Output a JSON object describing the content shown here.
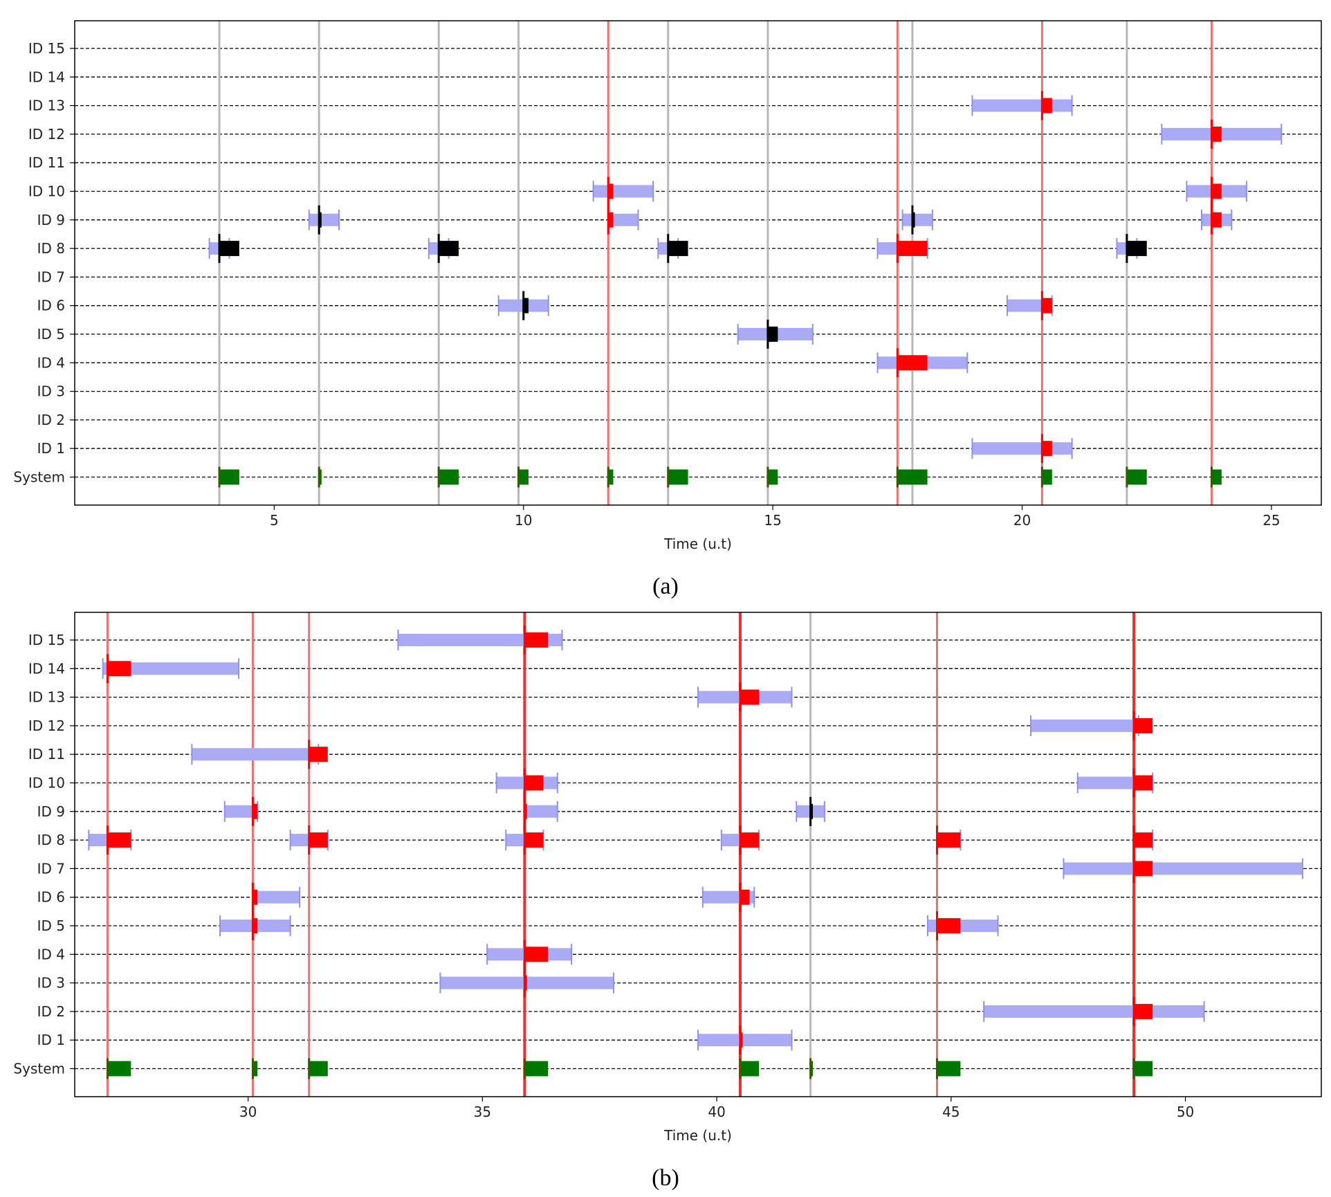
{
  "chart_data": [
    {
      "type": "gantt",
      "panel_label": "(a)",
      "xlabel": "Time (u.t)",
      "xlim": [
        1,
        26
      ],
      "x_ticks": [
        5,
        10,
        15,
        20,
        25
      ],
      "y_ticks": [
        "ID 15",
        "ID 14",
        "ID 13",
        "ID 12",
        "ID 11",
        "ID 10",
        "ID 9",
        "ID 8",
        "ID 7",
        "ID 6",
        "ID 5",
        "ID 4",
        "ID 3",
        "ID 2",
        "ID 1",
        "System"
      ],
      "colors": {
        "window": "#aaaaf5",
        "miss": "#ff0000",
        "ok": "#000000",
        "system": "#007700",
        "grey_line": "#b8b8b8",
        "red_line": "#f07070"
      },
      "vertical_lines": [
        {
          "x": 3.9,
          "kind": "grey"
        },
        {
          "x": 5.9,
          "kind": "grey"
        },
        {
          "x": 8.3,
          "kind": "grey"
        },
        {
          "x": 9.9,
          "kind": "grey"
        },
        {
          "x": 11.7,
          "kind": "red"
        },
        {
          "x": 12.9,
          "kind": "grey"
        },
        {
          "x": 14.9,
          "kind": "grey"
        },
        {
          "x": 17.5,
          "kind": "red"
        },
        {
          "x": 17.8,
          "kind": "grey"
        },
        {
          "x": 20.4,
          "kind": "red"
        },
        {
          "x": 22.1,
          "kind": "grey"
        },
        {
          "x": 23.8,
          "kind": "red"
        }
      ],
      "tasks": [
        {
          "row": "ID 8",
          "win": [
            3.7,
            4.1
          ],
          "exec": [
            3.9,
            4.3
          ],
          "color": "black"
        },
        {
          "row": "ID 9",
          "win": [
            5.7,
            6.3
          ],
          "exec": [
            5.9,
            5.95
          ],
          "color": "black"
        },
        {
          "row": "ID 8",
          "win": [
            8.1,
            8.5
          ],
          "exec": [
            8.3,
            8.7
          ],
          "color": "black"
        },
        {
          "row": "ID 6",
          "win": [
            9.5,
            10.5
          ],
          "exec": [
            10.0,
            10.1
          ],
          "color": "black"
        },
        {
          "row": "ID 10",
          "win": [
            11.4,
            12.6
          ],
          "exec": [
            11.7,
            11.8
          ],
          "color": "red"
        },
        {
          "row": "ID 9",
          "win": [
            11.7,
            12.3
          ],
          "exec": [
            11.7,
            11.8
          ],
          "color": "red"
        },
        {
          "row": "ID 8",
          "win": [
            12.7,
            13.1
          ],
          "exec": [
            12.9,
            13.3
          ],
          "color": "black"
        },
        {
          "row": "ID 5",
          "win": [
            14.3,
            15.8
          ],
          "exec": [
            14.9,
            15.1
          ],
          "color": "black"
        },
        {
          "row": "ID 8",
          "win": [
            17.1,
            18.1
          ],
          "exec": [
            17.5,
            18.1
          ],
          "color": "red"
        },
        {
          "row": "ID 4",
          "win": [
            17.1,
            18.9
          ],
          "exec": [
            17.5,
            18.1
          ],
          "color": "red"
        },
        {
          "row": "ID 9",
          "win": [
            17.6,
            18.2
          ],
          "exec": [
            17.8,
            17.85
          ],
          "color": "black"
        },
        {
          "row": "ID 13",
          "win": [
            19.0,
            21.0
          ],
          "exec": [
            20.4,
            20.6
          ],
          "color": "red"
        },
        {
          "row": "ID 6",
          "win": [
            19.7,
            20.6
          ],
          "exec": [
            20.4,
            20.6
          ],
          "color": "red"
        },
        {
          "row": "ID 1",
          "win": [
            19.0,
            21.0
          ],
          "exec": [
            20.4,
            20.6
          ],
          "color": "red"
        },
        {
          "row": "ID 8",
          "win": [
            21.9,
            22.3
          ],
          "exec": [
            22.1,
            22.5
          ],
          "color": "black"
        },
        {
          "row": "ID 12",
          "win": [
            22.8,
            25.2
          ],
          "exec": [
            23.8,
            24.0
          ],
          "color": "red"
        },
        {
          "row": "ID 10",
          "win": [
            23.3,
            24.5
          ],
          "exec": [
            23.8,
            24.0
          ],
          "color": "red"
        },
        {
          "row": "ID 9",
          "win": [
            23.6,
            24.2
          ],
          "exec": [
            23.8,
            24.0
          ],
          "color": "red"
        }
      ],
      "system": [
        [
          3.9,
          4.3
        ],
        [
          5.9,
          5.95
        ],
        [
          8.3,
          8.7
        ],
        [
          9.9,
          10.1
        ],
        [
          11.7,
          11.8
        ],
        [
          12.9,
          13.3
        ],
        [
          14.9,
          15.1
        ],
        [
          17.5,
          18.1
        ],
        [
          20.4,
          20.6
        ],
        [
          22.1,
          22.5
        ],
        [
          23.8,
          24.0
        ]
      ]
    },
    {
      "type": "gantt",
      "panel_label": "(b)",
      "xlabel": "Time (u.t)",
      "xlim": [
        26.3,
        52.9
      ],
      "x_ticks": [
        30,
        35,
        40,
        45,
        50
      ],
      "y_ticks": [
        "ID 15",
        "ID 14",
        "ID 13",
        "ID 12",
        "ID 11",
        "ID 10",
        "ID 9",
        "ID 8",
        "ID 7",
        "ID 6",
        "ID 5",
        "ID 4",
        "ID 3",
        "ID 2",
        "ID 1",
        "System"
      ],
      "colors": {
        "window": "#aaaaf5",
        "miss": "#ff0000",
        "ok": "#000000",
        "system": "#007700",
        "grey_line": "#b8b8b8",
        "red_line": "#f07070"
      },
      "vertical_lines": [
        {
          "x": 27.0,
          "kind": "red"
        },
        {
          "x": 30.1,
          "kind": "red"
        },
        {
          "x": 31.3,
          "kind": "red"
        },
        {
          "x": 35.9,
          "kind": "red-bold"
        },
        {
          "x": 40.5,
          "kind": "red-bold"
        },
        {
          "x": 42.0,
          "kind": "grey"
        },
        {
          "x": 44.7,
          "kind": "red"
        },
        {
          "x": 48.9,
          "kind": "red-bold"
        }
      ],
      "tasks": [
        {
          "row": "ID 14",
          "win": [
            26.9,
            29.8
          ],
          "exec": [
            27.0,
            27.5
          ],
          "color": "red"
        },
        {
          "row": "ID 8",
          "win": [
            26.6,
            27.5
          ],
          "exec": [
            27.0,
            27.5
          ],
          "color": "red"
        },
        {
          "row": "ID 11",
          "win": [
            28.8,
            31.5
          ],
          "exec": [
            31.3,
            31.7
          ],
          "color": "red"
        },
        {
          "row": "ID 9",
          "win": [
            29.5,
            30.2
          ],
          "exec": [
            30.1,
            30.2
          ],
          "color": "red"
        },
        {
          "row": "ID 6",
          "win": [
            30.1,
            31.1
          ],
          "exec": [
            30.1,
            30.2
          ],
          "color": "red"
        },
        {
          "row": "ID 5",
          "win": [
            29.4,
            30.9
          ],
          "exec": [
            30.1,
            30.2
          ],
          "color": "red"
        },
        {
          "row": "ID 8",
          "win": [
            30.9,
            31.7
          ],
          "exec": [
            31.3,
            31.7
          ],
          "color": "red"
        },
        {
          "row": "ID 15",
          "win": [
            33.2,
            36.7
          ],
          "exec": [
            35.9,
            36.4
          ],
          "color": "red"
        },
        {
          "row": "ID 10",
          "win": [
            35.3,
            36.6
          ],
          "exec": [
            35.9,
            36.3
          ],
          "color": "red"
        },
        {
          "row": "ID 9",
          "win": [
            35.9,
            36.6
          ],
          "exec": [
            35.9,
            35.95
          ],
          "color": "red"
        },
        {
          "row": "ID 8",
          "win": [
            35.5,
            36.3
          ],
          "exec": [
            35.9,
            36.3
          ],
          "color": "red"
        },
        {
          "row": "ID 4",
          "win": [
            35.1,
            36.9
          ],
          "exec": [
            35.9,
            36.4
          ],
          "color": "red"
        },
        {
          "row": "ID 3",
          "win": [
            34.1,
            37.8
          ],
          "exec": [
            35.9,
            35.95
          ],
          "color": "red"
        },
        {
          "row": "ID 13",
          "win": [
            39.6,
            41.6
          ],
          "exec": [
            40.5,
            40.9
          ],
          "color": "red"
        },
        {
          "row": "ID 8",
          "win": [
            40.1,
            40.9
          ],
          "exec": [
            40.5,
            40.9
          ],
          "color": "red"
        },
        {
          "row": "ID 6",
          "win": [
            39.7,
            40.8
          ],
          "exec": [
            40.5,
            40.7
          ],
          "color": "red"
        },
        {
          "row": "ID 1",
          "win": [
            39.6,
            41.6
          ],
          "exec": [
            40.5,
            40.55
          ],
          "color": "red"
        },
        {
          "row": "ID 9",
          "win": [
            41.7,
            42.3
          ],
          "exec": [
            42.0,
            42.05
          ],
          "color": "black"
        },
        {
          "row": "ID 8",
          "win": [
            44.7,
            45.2
          ],
          "exec": [
            44.7,
            45.2
          ],
          "color": "red"
        },
        {
          "row": "ID 5",
          "win": [
            44.5,
            46.0
          ],
          "exec": [
            44.7,
            45.2
          ],
          "color": "red"
        },
        {
          "row": "ID 12",
          "win": [
            46.7,
            49.0
          ],
          "exec": [
            48.9,
            49.3
          ],
          "color": "red"
        },
        {
          "row": "ID 10",
          "win": [
            47.7,
            49.3
          ],
          "exec": [
            48.9,
            49.3
          ],
          "color": "red"
        },
        {
          "row": "ID 8",
          "win": [
            48.9,
            49.3
          ],
          "exec": [
            48.9,
            49.3
          ],
          "color": "red"
        },
        {
          "row": "ID 7",
          "win": [
            47.4,
            52.5
          ],
          "exec": [
            48.9,
            49.3
          ],
          "color": "red"
        },
        {
          "row": "ID 2",
          "win": [
            45.7,
            50.4
          ],
          "exec": [
            48.9,
            49.3
          ],
          "color": "red"
        }
      ],
      "system": [
        [
          27.0,
          27.5
        ],
        [
          30.1,
          30.2
        ],
        [
          31.3,
          31.7
        ],
        [
          35.9,
          36.4
        ],
        [
          40.5,
          40.9
        ],
        [
          42.0,
          42.05
        ],
        [
          44.7,
          45.2
        ],
        [
          48.9,
          49.3
        ]
      ]
    }
  ]
}
